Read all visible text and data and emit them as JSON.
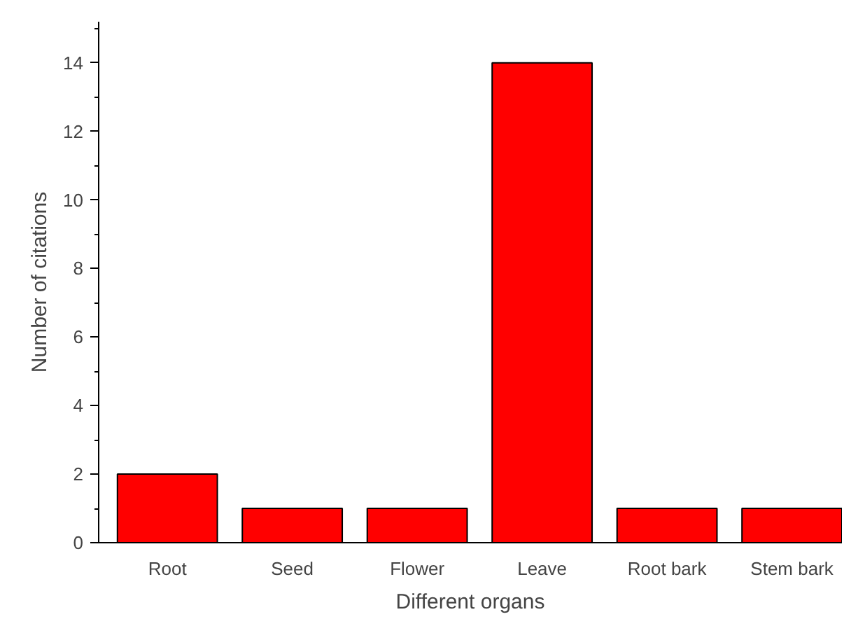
{
  "chart_data": {
    "type": "bar",
    "xlabel": "Different organs",
    "ylabel": "Number of citations",
    "categories": [
      "Root",
      "Seed",
      "Flower",
      "Leave",
      "Root bark",
      "Stem bark"
    ],
    "values": [
      2,
      1,
      1,
      14,
      1,
      1
    ],
    "color": "#ff0000",
    "ylim": [
      0,
      15.2
    ],
    "yticks": [
      0,
      {
        "value": 1,
        "label": null
      },
      2,
      {
        "value": 3,
        "label": null
      },
      4,
      {
        "value": 5,
        "label": null
      },
      6,
      {
        "value": 7,
        "label": null
      },
      8,
      {
        "value": 9,
        "label": null
      },
      10,
      {
        "value": 11,
        "label": null
      },
      12,
      {
        "value": 13,
        "label": null
      },
      14,
      {
        "value": 15,
        "label": null
      }
    ],
    "grid": false
  }
}
